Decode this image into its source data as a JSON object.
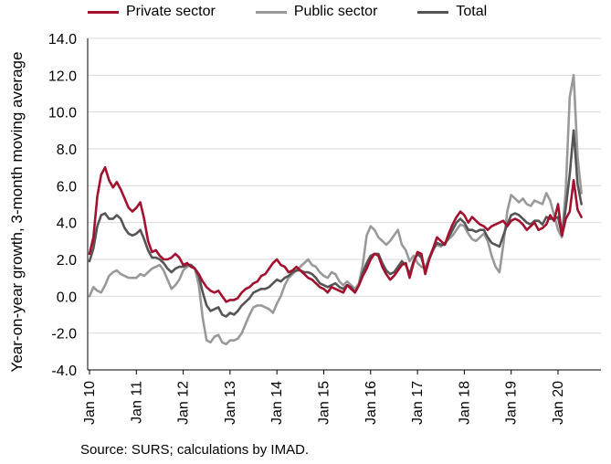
{
  "chart_data": {
    "type": "line",
    "ylabel": "Year-on-year growth, 3-month moving average",
    "ylim": [
      -4.0,
      14.0
    ],
    "yticks": [
      "14.0",
      "12.0",
      "10.0",
      "8.0",
      "6.0",
      "4.0",
      "2.0",
      "0.0",
      "-2.0",
      "-4.0"
    ],
    "ytick_values": [
      14,
      12,
      10,
      8,
      6,
      4,
      2,
      0,
      -2,
      -4
    ],
    "xticks": [
      "Jan 10",
      "Jan 11",
      "Jan 12",
      "Jan 13",
      "Jan 14",
      "Jan 15",
      "Jan 16",
      "Jan 17",
      "Jan 18",
      "Jan 19",
      "Jan 20"
    ],
    "x_start": "Jan 10",
    "x_step": "month",
    "grid": "horizontal",
    "legend_position": "top",
    "series": [
      {
        "name": "Private sector",
        "color": "#a3112f",
        "values": [
          2.3,
          3.2,
          5.4,
          6.6,
          7.0,
          6.3,
          5.9,
          6.2,
          5.8,
          5.3,
          4.8,
          4.6,
          4.8,
          5.1,
          4.2,
          3.0,
          2.4,
          2.5,
          2.2,
          2.0,
          2.0,
          2.1,
          2.3,
          2.1,
          1.7,
          1.8,
          1.6,
          1.5,
          1.2,
          0.8,
          0.5,
          0.3,
          0.2,
          0.3,
          0.0,
          -0.3,
          -0.2,
          -0.2,
          -0.1,
          0.2,
          0.4,
          0.5,
          0.7,
          0.8,
          1.1,
          1.2,
          1.5,
          1.8,
          2.0,
          1.7,
          1.6,
          1.3,
          1.4,
          1.6,
          1.4,
          1.2,
          1.0,
          0.9,
          0.7,
          0.5,
          0.4,
          0.2,
          0.5,
          0.4,
          0.3,
          0.2,
          0.6,
          0.4,
          0.2,
          0.6,
          1.1,
          1.5,
          2.0,
          2.3,
          2.2,
          1.6,
          1.2,
          0.9,
          1.1,
          1.4,
          1.7,
          1.8,
          1.0,
          1.8,
          2.4,
          2.3,
          1.2,
          2.0,
          2.6,
          3.2,
          3.0,
          2.8,
          3.4,
          3.9,
          4.3,
          4.6,
          4.4,
          4.0,
          4.3,
          4.1,
          3.9,
          3.8,
          3.6,
          3.8,
          3.9,
          4.0,
          4.1,
          3.8,
          4.1,
          4.2,
          4.1,
          3.9,
          3.6,
          3.8,
          4.0,
          3.6,
          3.7,
          3.9,
          4.4,
          4.1,
          5.0,
          3.3,
          4.2,
          4.6,
          6.3,
          4.7,
          4.3
        ]
      },
      {
        "name": "Public sector",
        "color": "#999999",
        "values": [
          0.0,
          0.5,
          0.3,
          0.2,
          0.6,
          1.1,
          1.3,
          1.4,
          1.2,
          1.1,
          1.0,
          1.0,
          1.0,
          1.2,
          1.1,
          1.3,
          1.5,
          1.6,
          1.7,
          1.4,
          0.9,
          0.4,
          0.6,
          0.9,
          1.4,
          1.6,
          1.7,
          1.5,
          0.6,
          -1.2,
          -2.4,
          -2.5,
          -2.2,
          -2.1,
          -2.5,
          -2.6,
          -2.4,
          -2.4,
          -2.3,
          -2.0,
          -1.5,
          -1.0,
          -0.6,
          -0.5,
          -0.5,
          -0.6,
          -0.7,
          -0.9,
          -0.4,
          0.0,
          0.6,
          1.0,
          1.2,
          1.4,
          1.6,
          1.8,
          2.0,
          1.7,
          1.6,
          1.3,
          1.1,
          1.0,
          1.3,
          1.2,
          0.8,
          0.6,
          0.8,
          0.6,
          0.4,
          0.7,
          1.7,
          3.3,
          3.8,
          3.6,
          3.2,
          3.0,
          2.8,
          3.0,
          3.3,
          3.6,
          2.8,
          2.5,
          1.9,
          2.2,
          1.8,
          1.6,
          1.5,
          2.1,
          2.6,
          2.8,
          2.7,
          2.9,
          3.1,
          3.3,
          3.6,
          3.9,
          3.8,
          3.4,
          3.1,
          3.0,
          3.2,
          3.4,
          3.0,
          2.2,
          1.6,
          1.3,
          2.8,
          4.6,
          5.5,
          5.3,
          5.1,
          5.3,
          5.0,
          4.9,
          5.2,
          5.1,
          5.0,
          5.6,
          5.2,
          4.4,
          3.6,
          3.2,
          5.8,
          10.8,
          12.0,
          7.6,
          5.6
        ]
      },
      {
        "name": "Total",
        "color": "#555555",
        "values": [
          1.9,
          2.6,
          3.8,
          4.4,
          4.5,
          4.2,
          4.2,
          4.4,
          4.2,
          3.7,
          3.4,
          3.3,
          3.4,
          3.6,
          3.1,
          2.5,
          2.1,
          2.1,
          2.0,
          1.8,
          1.5,
          1.3,
          1.5,
          1.6,
          1.6,
          1.7,
          1.7,
          1.5,
          1.1,
          0.2,
          -0.5,
          -0.8,
          -0.7,
          -0.6,
          -1.0,
          -1.1,
          -0.9,
          -1.0,
          -0.8,
          -0.5,
          -0.3,
          -0.1,
          0.2,
          0.3,
          0.4,
          0.4,
          0.5,
          0.7,
          0.9,
          0.8,
          1.0,
          1.1,
          1.3,
          1.4,
          1.4,
          1.3,
          1.3,
          1.2,
          1.0,
          0.7,
          0.6,
          0.5,
          0.6,
          0.7,
          0.5,
          0.4,
          0.6,
          0.5,
          0.2,
          0.6,
          1.3,
          1.8,
          2.2,
          2.3,
          2.3,
          1.8,
          1.4,
          1.2,
          1.3,
          1.6,
          1.9,
          1.7,
          1.2,
          1.9,
          2.3,
          2.1,
          1.4,
          2.0,
          2.5,
          2.9,
          2.8,
          2.8,
          3.2,
          3.6,
          4.0,
          4.2,
          4.0,
          3.6,
          3.6,
          3.5,
          3.6,
          3.6,
          3.2,
          2.9,
          2.8,
          2.7,
          3.3,
          3.9,
          4.4,
          4.5,
          4.4,
          4.2,
          4.0,
          3.9,
          4.1,
          4.1,
          3.9,
          4.3,
          4.2,
          4.2,
          4.3,
          3.3,
          4.8,
          6.6,
          9.0,
          6.1,
          5.0
        ]
      }
    ]
  },
  "legend": {
    "items": [
      {
        "label": "Private sector",
        "color": "#a3112f"
      },
      {
        "label": "Public sector",
        "color": "#999999"
      },
      {
        "label": "Total",
        "color": "#555555"
      }
    ]
  },
  "source_note": "Source: SURS; calculations by IMAD."
}
